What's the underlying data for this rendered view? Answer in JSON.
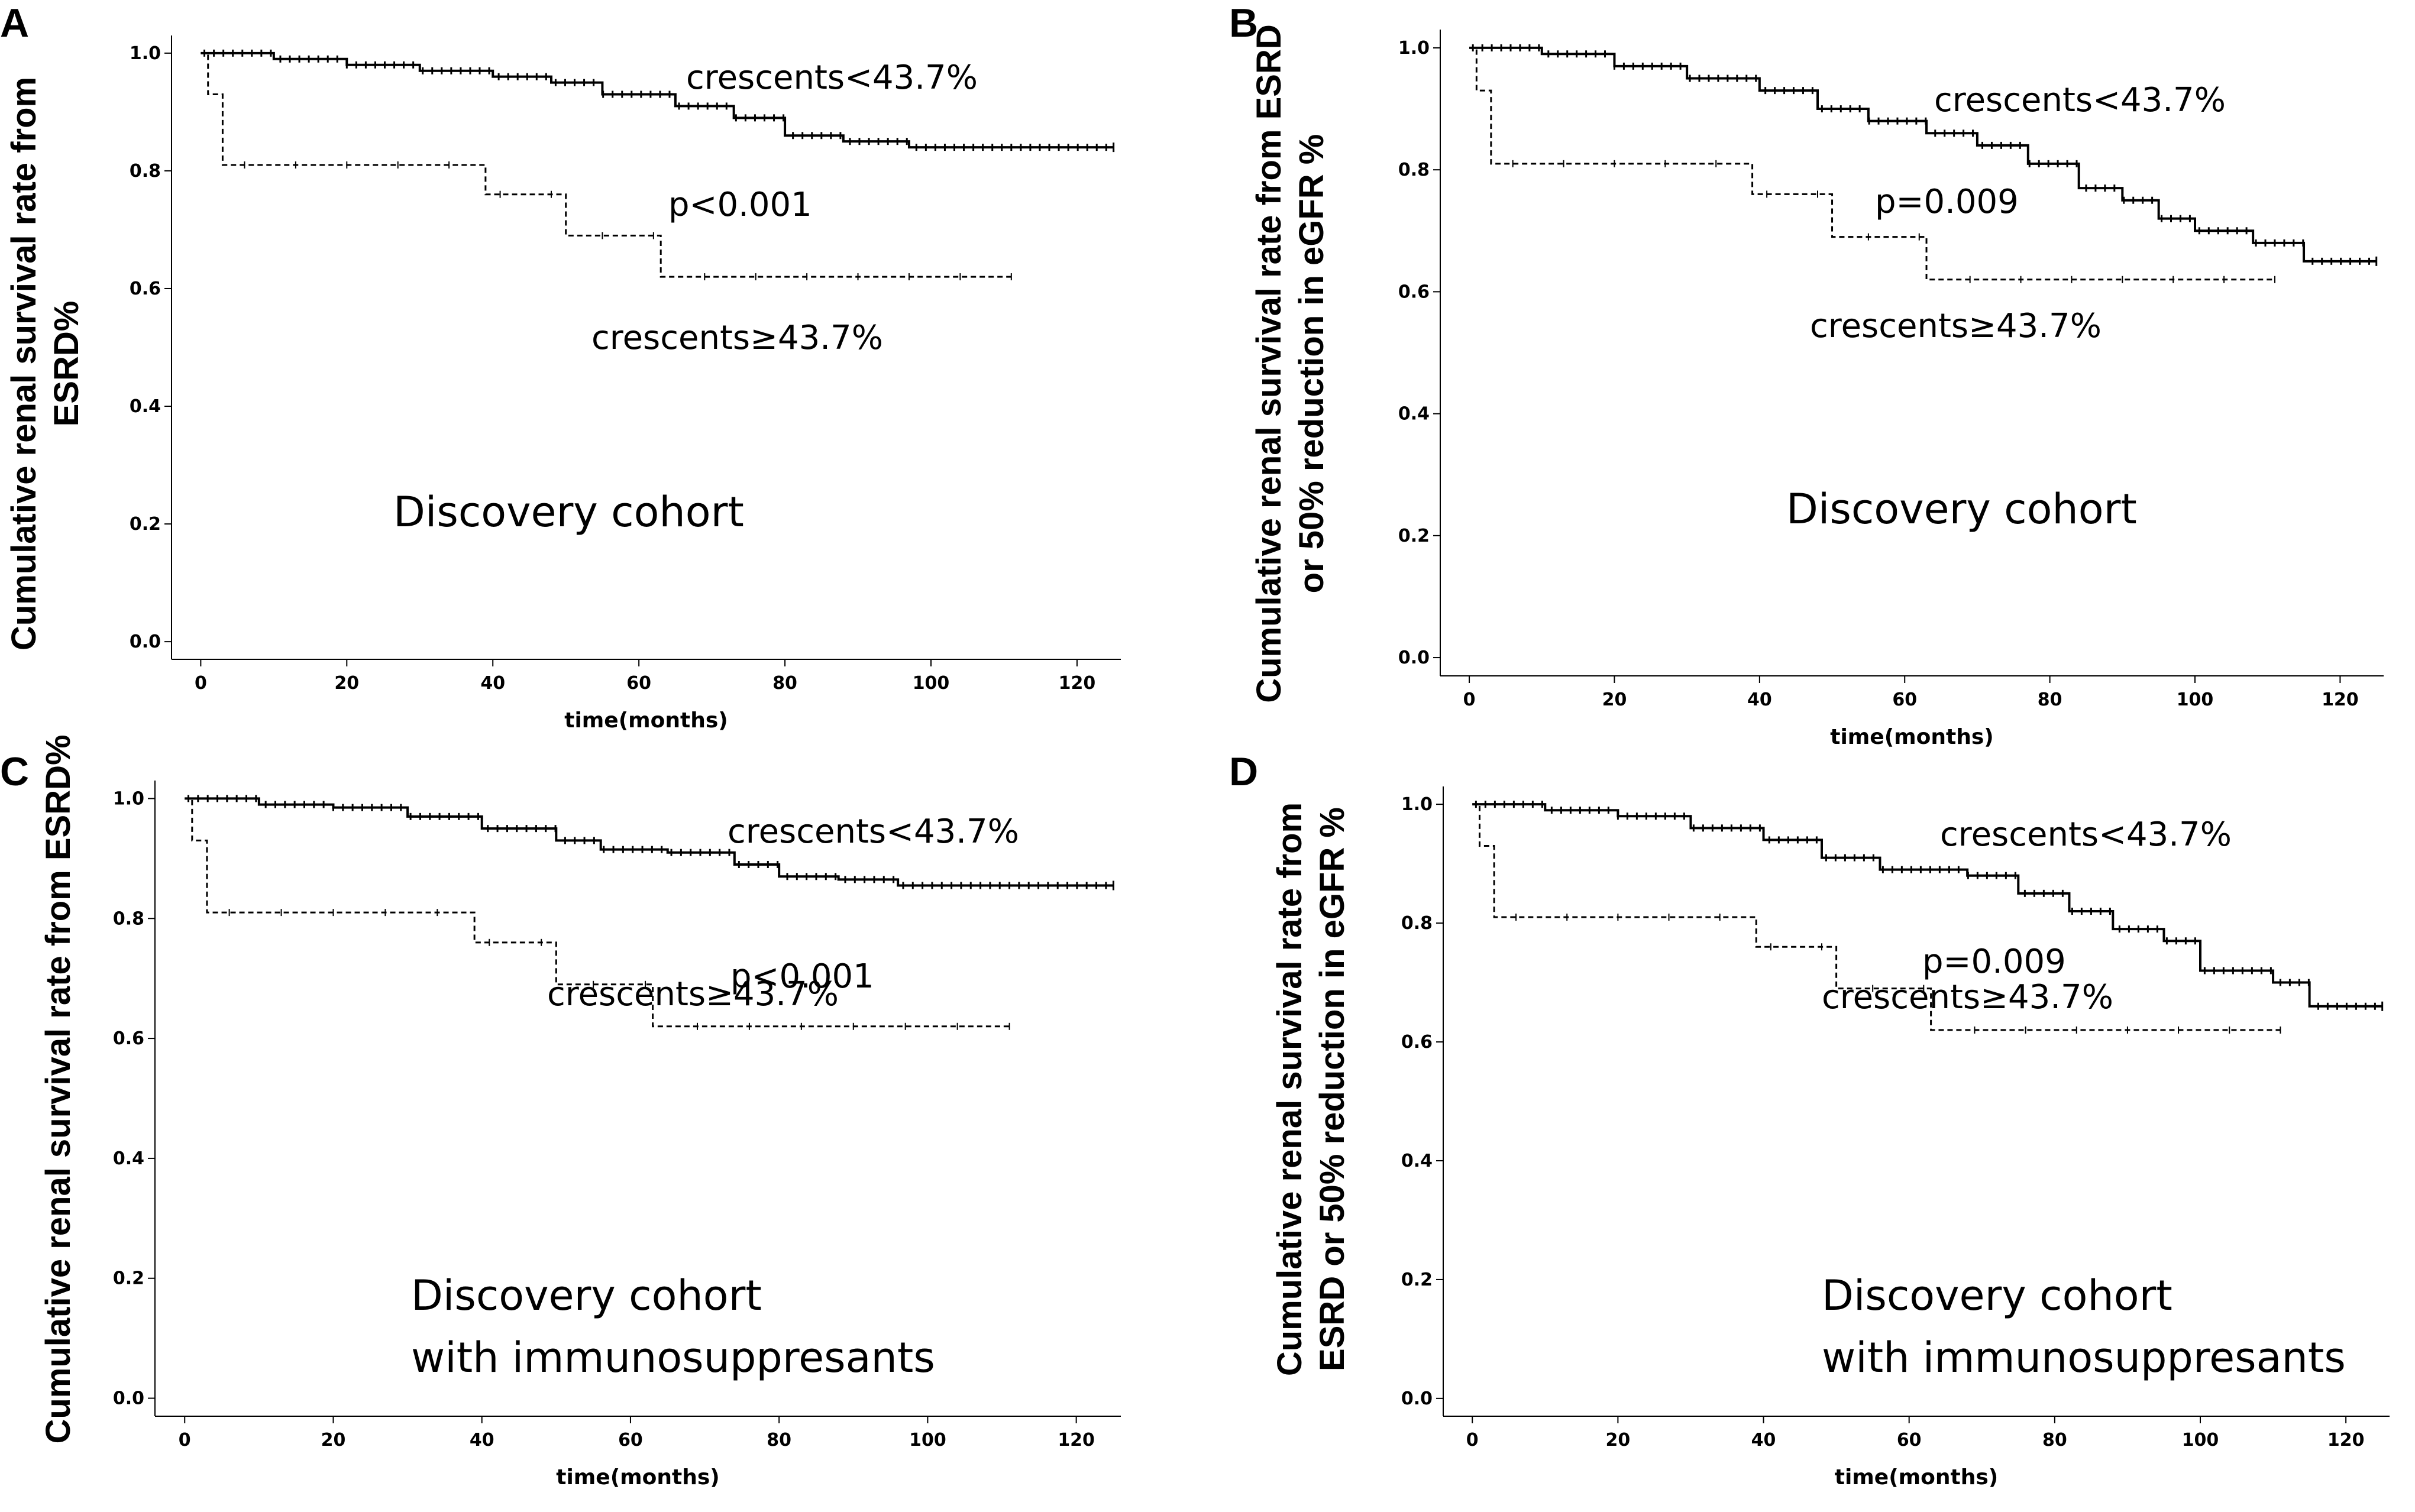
{
  "chart_data": [
    {
      "panel": "A",
      "type": "line",
      "subtype": "kaplan-meier",
      "xlabel": "time(months)",
      "ylabel_lines": [
        "Cumulative renal survival rate from",
        "ESRD%"
      ],
      "xlim": [
        -4,
        126
      ],
      "ylim": [
        -0.03,
        1.03
      ],
      "xticks": [
        0,
        20,
        40,
        60,
        80,
        100,
        120
      ],
      "yticks": [
        0.0,
        0.2,
        0.4,
        0.6,
        0.8,
        1.0
      ],
      "ytick_labels": [
        "0.0",
        "0.2",
        "0.4",
        "0.6",
        "0.8",
        "1.0"
      ],
      "series": [
        {
          "name": "crescents<43.7%",
          "style": "solid",
          "steps": [
            [
              0,
              1.0
            ],
            [
              10,
              0.99
            ],
            [
              20,
              0.98
            ],
            [
              30,
              0.97
            ],
            [
              40,
              0.96
            ],
            [
              48,
              0.95
            ],
            [
              55,
              0.93
            ],
            [
              65,
              0.91
            ],
            [
              73,
              0.89
            ],
            [
              80,
              0.86
            ],
            [
              88,
              0.85
            ],
            [
              97,
              0.84
            ],
            [
              125,
              0.84
            ]
          ]
        },
        {
          "name": "crescents≥43.7%",
          "style": "dashed",
          "steps": [
            [
              0,
              1.0
            ],
            [
              1,
              0.93
            ],
            [
              3,
              0.81
            ],
            [
              39,
              0.76
            ],
            [
              50,
              0.69
            ],
            [
              63,
              0.62
            ],
            [
              111,
              0.62
            ]
          ]
        }
      ],
      "annotations": [
        "crescents<43.7%",
        "p<0.001",
        "crescents≥43.7%"
      ],
      "cohort_label": [
        "Discovery cohort"
      ]
    },
    {
      "panel": "B",
      "type": "line",
      "subtype": "kaplan-meier",
      "xlabel": "time(months)",
      "ylabel_lines": [
        "Cumulative renal survival rate from ESRD",
        "or 50% reduction in eGFR %"
      ],
      "xlim": [
        -4,
        126
      ],
      "ylim": [
        -0.03,
        1.03
      ],
      "xticks": [
        0,
        20,
        40,
        60,
        80,
        100,
        120
      ],
      "yticks": [
        0.0,
        0.2,
        0.4,
        0.6,
        0.8,
        1.0
      ],
      "ytick_labels": [
        "0.0",
        "0.2",
        "0.4",
        "0.6",
        "0.8",
        "1.0"
      ],
      "series": [
        {
          "name": "crescents<43.7%",
          "style": "solid",
          "steps": [
            [
              0,
              1.0
            ],
            [
              10,
              0.99
            ],
            [
              20,
              0.97
            ],
            [
              30,
              0.95
            ],
            [
              40,
              0.93
            ],
            [
              48,
              0.9
            ],
            [
              55,
              0.88
            ],
            [
              63,
              0.86
            ],
            [
              70,
              0.84
            ],
            [
              77,
              0.81
            ],
            [
              84,
              0.77
            ],
            [
              90,
              0.75
            ],
            [
              95,
              0.72
            ],
            [
              100,
              0.7
            ],
            [
              108,
              0.68
            ],
            [
              115,
              0.65
            ],
            [
              125,
              0.65
            ]
          ]
        },
        {
          "name": "crescents≥43.7%",
          "style": "dashed",
          "steps": [
            [
              0,
              1.0
            ],
            [
              1,
              0.93
            ],
            [
              3,
              0.81
            ],
            [
              39,
              0.76
            ],
            [
              50,
              0.69
            ],
            [
              63,
              0.62
            ],
            [
              111,
              0.62
            ]
          ]
        }
      ],
      "annotations": [
        "crescents<43.7%",
        "p=0.009",
        "crescents≥43.7%"
      ],
      "cohort_label": [
        "Discovery cohort"
      ]
    },
    {
      "panel": "C",
      "type": "line",
      "subtype": "kaplan-meier",
      "xlabel": "time(months)",
      "ylabel_lines": [
        "Cumulative renal survival rate from ESRD%"
      ],
      "xlim": [
        -4,
        126
      ],
      "ylim": [
        -0.03,
        1.03
      ],
      "xticks": [
        0,
        20,
        40,
        60,
        80,
        100,
        120
      ],
      "yticks": [
        0.0,
        0.2,
        0.4,
        0.6,
        0.8,
        1.0
      ],
      "ytick_labels": [
        "0.0",
        "0.2",
        "0.4",
        "0.6",
        "0.8",
        "1.0"
      ],
      "series": [
        {
          "name": "crescents<43.7%",
          "style": "solid",
          "steps": [
            [
              0,
              1.0
            ],
            [
              10,
              0.99
            ],
            [
              20,
              0.985
            ],
            [
              30,
              0.97
            ],
            [
              40,
              0.95
            ],
            [
              50,
              0.93
            ],
            [
              56,
              0.915
            ],
            [
              65,
              0.91
            ],
            [
              74,
              0.89
            ],
            [
              80,
              0.87
            ],
            [
              88,
              0.865
            ],
            [
              96,
              0.855
            ],
            [
              125,
              0.855
            ]
          ]
        },
        {
          "name": "crescents≥43.7%",
          "style": "dashed",
          "steps": [
            [
              0,
              1.0
            ],
            [
              1,
              0.93
            ],
            [
              3,
              0.81
            ],
            [
              39,
              0.76
            ],
            [
              50,
              0.69
            ],
            [
              63,
              0.62
            ],
            [
              111,
              0.62
            ]
          ]
        }
      ],
      "annotations": [
        "crescents<43.7%",
        "p<0.001",
        "crescents≥43.7%"
      ],
      "cohort_label": [
        "Discovery cohort",
        "with immunosuppresants"
      ]
    },
    {
      "panel": "D",
      "type": "line",
      "subtype": "kaplan-meier",
      "xlabel": "time(months)",
      "ylabel_lines": [
        "Cumulative renal survival rate from",
        "ESRD or 50% reduction in eGFR %"
      ],
      "xlim": [
        -4,
        126
      ],
      "ylim": [
        -0.03,
        1.03
      ],
      "xticks": [
        0,
        20,
        40,
        60,
        80,
        100,
        120
      ],
      "yticks": [
        0.0,
        0.2,
        0.4,
        0.6,
        0.8,
        1.0
      ],
      "ytick_labels": [
        "0.0",
        "0.2",
        "0.4",
        "0.6",
        "0.8",
        "1.0"
      ],
      "series": [
        {
          "name": "crescents<43.7%",
          "style": "solid",
          "steps": [
            [
              0,
              1.0
            ],
            [
              10,
              0.99
            ],
            [
              20,
              0.98
            ],
            [
              30,
              0.96
            ],
            [
              40,
              0.94
            ],
            [
              48,
              0.91
            ],
            [
              56,
              0.89
            ],
            [
              68,
              0.88
            ],
            [
              75,
              0.85
            ],
            [
              82,
              0.82
            ],
            [
              88,
              0.79
            ],
            [
              95,
              0.77
            ],
            [
              100,
              0.72
            ],
            [
              110,
              0.7
            ],
            [
              115,
              0.66
            ],
            [
              125,
              0.66
            ]
          ]
        },
        {
          "name": "crescents≥43.7%",
          "style": "dashed",
          "steps": [
            [
              0,
              1.0
            ],
            [
              1,
              0.93
            ],
            [
              3,
              0.81
            ],
            [
              39,
              0.76
            ],
            [
              50,
              0.69
            ],
            [
              63,
              0.62
            ],
            [
              111,
              0.62
            ]
          ]
        }
      ],
      "annotations": [
        "crescents<43.7%",
        "p=0.009",
        "crescents≥43.7%"
      ],
      "cohort_label": [
        "Discovery cohort",
        "with immunosuppresants"
      ]
    }
  ]
}
